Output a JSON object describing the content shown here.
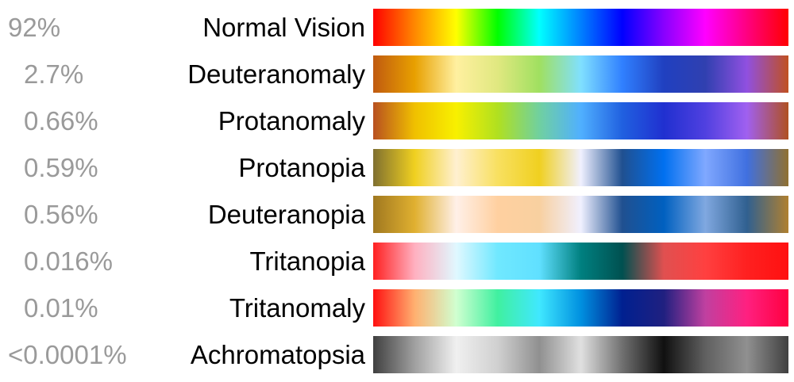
{
  "rows": [
    {
      "percent": "92%",
      "name": "Normal Vision",
      "colors": [
        "#ff0000",
        "#ff8800",
        "#ffff00",
        "#00ff00",
        "#00ffff",
        "#0080ff",
        "#0000ff",
        "#8800ff",
        "#ff00ff",
        "#ff0080",
        "#ff0000"
      ]
    },
    {
      "percent": "2.7%",
      "name": "Deuteranomaly",
      "colors": [
        "#c05a10",
        "#e8a000",
        "#fff0a0",
        "#e0e880",
        "#a0e060",
        "#80e0ff",
        "#3080ff",
        "#2040c0",
        "#3040b0",
        "#9050e0",
        "#c05020"
      ]
    },
    {
      "percent": "0.66%",
      "name": "Protanomaly",
      "colors": [
        "#b85020",
        "#f0c000",
        "#f8f000",
        "#b0e020",
        "#70d0a0",
        "#50b0ff",
        "#2060e0",
        "#2030d0",
        "#5040e0",
        "#a060f0",
        "#b05020"
      ]
    },
    {
      "percent": "0.59%",
      "name": "Protanopia",
      "colors": [
        "#807030",
        "#f0d020",
        "#fff0d0",
        "#f8e060",
        "#f0d020",
        "#f0f0ff",
        "#205090",
        "#0070f0",
        "#80a8ff",
        "#4070e0",
        "#907030"
      ]
    },
    {
      "percent": "0.56%",
      "name": "Deuteranopia",
      "colors": [
        "#a07820",
        "#e0b030",
        "#fff0e8",
        "#ffd0a0",
        "#f8d0a0",
        "#f0f0ff",
        "#205090",
        "#0060c0",
        "#80a8e0",
        "#306090",
        "#b08030"
      ]
    },
    {
      "percent": "0.016%",
      "name": "Tritanopia",
      "colors": [
        "#ff2020",
        "#ffb0c0",
        "#e0f8ff",
        "#70e8ff",
        "#60e0ff",
        "#008080",
        "#005050",
        "#e05050",
        "#ff4040",
        "#ff2020",
        "#ff1010"
      ]
    },
    {
      "percent": "0.01%",
      "name": "Tritanomaly",
      "colors": [
        "#ff1010",
        "#ffb070",
        "#d0ffd0",
        "#40f0a0",
        "#40e8ff",
        "#0090e0",
        "#002090",
        "#202080",
        "#c040a0",
        "#ff2080",
        "#ff0040"
      ]
    },
    {
      "percent": "<0.0001%",
      "name": "Achromatopsia",
      "colors": [
        "#404040",
        "#a0a0a0",
        "#f0f0f0",
        "#d0d0d0",
        "#909090",
        "#e0e0e0",
        "#707070",
        "#101010",
        "#606060",
        "#909090",
        "#404040"
      ]
    }
  ]
}
